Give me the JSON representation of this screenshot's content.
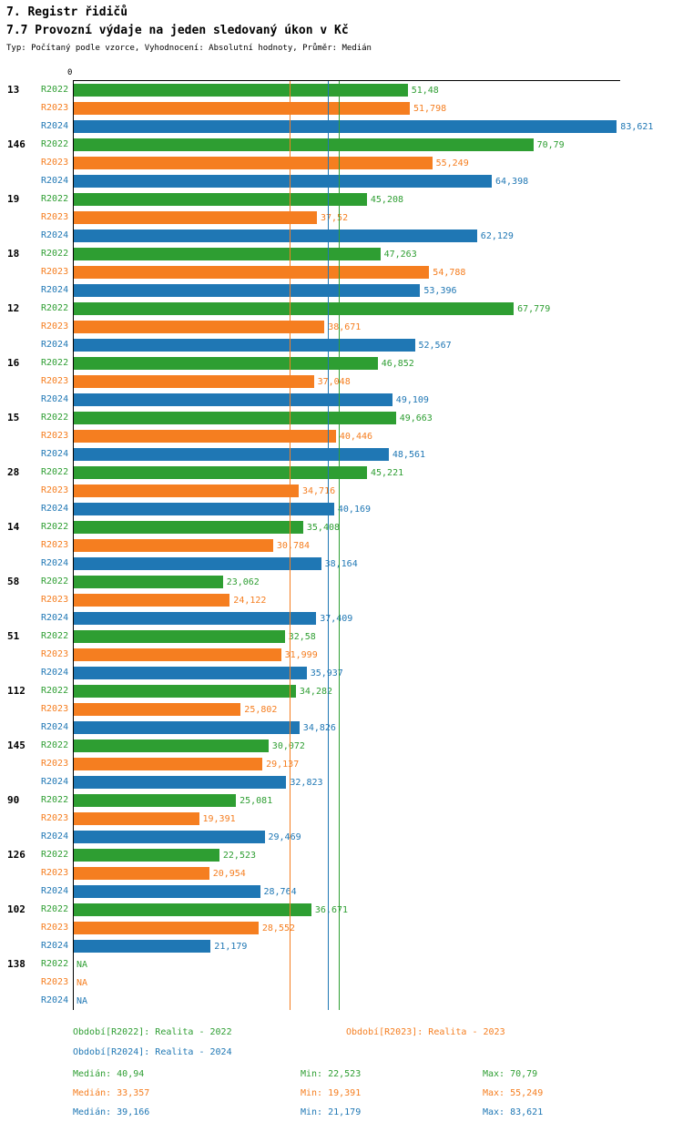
{
  "header": {
    "title": "7. Registr řidičů",
    "subtitle": "7.7 Provozní výdaje na jeden sledovaný úkon v Kč",
    "meta": "Typ: Počítaný podle vzorce, Vyhodnocení: Absolutní hodnoty, Průměr: Medián"
  },
  "chart_data": {
    "type": "bar",
    "orientation": "horizontal",
    "title": "7.7 Provozní výdaje na jeden sledovaný úkon v Kč",
    "zero_label": "0",
    "xlim": [
      0,
      84
    ],
    "grid": false,
    "na_text": "NA",
    "series": [
      {
        "name": "R2022",
        "color": "#2e9e32",
        "legend": "Období[R2022]: Realita - 2022",
        "median": 40.94,
        "min": 22.523,
        "max": 70.79
      },
      {
        "name": "R2023",
        "color": "#f57e20",
        "legend": "Období[R2023]: Realita - 2023",
        "median": 33.357,
        "min": 19.391,
        "max": 55.249
      },
      {
        "name": "R2024",
        "color": "#1f77b4",
        "legend": "Období[R2024]: Realita - 2024",
        "median": 39.166,
        "min": 21.179,
        "max": 83.621
      }
    ],
    "categories": [
      "13",
      "146",
      "19",
      "18",
      "12",
      "16",
      "15",
      "28",
      "14",
      "58",
      "51",
      "112",
      "145",
      "90",
      "126",
      "102",
      "138"
    ],
    "groups": [
      {
        "label": "13",
        "values": [
          "51,48",
          "51,798",
          "83,621"
        ]
      },
      {
        "label": "146",
        "values": [
          "70,79",
          "55,249",
          "64,398"
        ]
      },
      {
        "label": "19",
        "values": [
          "45,208",
          "37,52",
          "62,129"
        ]
      },
      {
        "label": "18",
        "values": [
          "47,263",
          "54,788",
          "53,396"
        ]
      },
      {
        "label": "12",
        "values": [
          "67,779",
          "38,671",
          "52,567"
        ]
      },
      {
        "label": "16",
        "values": [
          "46,852",
          "37,048",
          "49,109"
        ]
      },
      {
        "label": "15",
        "values": [
          "49,663",
          "40,446",
          "48,561"
        ]
      },
      {
        "label": "28",
        "values": [
          "45,221",
          "34,716",
          "40,169"
        ]
      },
      {
        "label": "14",
        "values": [
          "35,408",
          "30,784",
          "38,164"
        ]
      },
      {
        "label": "58",
        "values": [
          "23,062",
          "24,122",
          "37,409"
        ]
      },
      {
        "label": "51",
        "values": [
          "32,58",
          "31,999",
          "35,937"
        ]
      },
      {
        "label": "112",
        "values": [
          "34,282",
          "25,802",
          "34,826"
        ]
      },
      {
        "label": "145",
        "values": [
          "30,072",
          "29,137",
          "32,823"
        ]
      },
      {
        "label": "90",
        "values": [
          "25,081",
          "19,391",
          "29,469"
        ]
      },
      {
        "label": "126",
        "values": [
          "22,523",
          "20,954",
          "28,764"
        ]
      },
      {
        "label": "102",
        "values": [
          "36,671",
          "28,552",
          "21,179"
        ]
      },
      {
        "label": "138",
        "values": [
          "NA",
          "NA",
          "NA"
        ]
      }
    ]
  },
  "legend": {
    "stats": [
      {
        "median": "Medián: 40,94",
        "min": "Min: 22,523",
        "max": "Max: 70,79"
      },
      {
        "median": "Medián: 33,357",
        "min": "Min: 19,391",
        "max": "Max: 55,249"
      },
      {
        "median": "Medián: 39,166",
        "min": "Min: 21,179",
        "max": "Max: 83,621"
      }
    ]
  }
}
